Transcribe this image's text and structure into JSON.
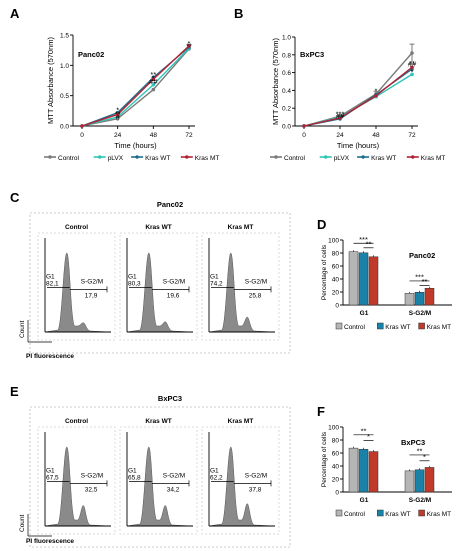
{
  "colors": {
    "control": "#7a7a7a",
    "plvx": "#2ec4b6",
    "kraswt": "#1f6f8b",
    "krasmt": "#b22234",
    "bar_control": "#b5b5b5",
    "bar_wt": "#1a82a8",
    "bar_mt": "#c0392b",
    "hist": "#8a8a8a"
  },
  "icons": [
    "marker-circle-icon",
    "error-bar-icon"
  ],
  "chart_data": [
    {
      "id": "A",
      "panel_label": "A",
      "type": "line",
      "inset_title": "Panc02",
      "xlabel": "Time (hours)",
      "ylabel": "MTT Absorbance (570nm)",
      "x": [
        0,
        24,
        48,
        72
      ],
      "x_ticks": [
        "0",
        "24",
        "48",
        "72"
      ],
      "y_ticks": [
        "0.0",
        "0.5",
        "1.0",
        "1.5"
      ],
      "ylim": [
        0,
        1.5
      ],
      "series": [
        {
          "name": "Control",
          "color": "#7a7a7a",
          "values": [
            0,
            0.12,
            0.6,
            1.27
          ]
        },
        {
          "name": "pLVX",
          "color": "#2ec4b6",
          "values": [
            0,
            0.15,
            0.68,
            1.28
          ]
        },
        {
          "name": "Kras WT",
          "color": "#1f6f8b",
          "values": [
            0,
            0.22,
            0.8,
            1.3
          ]
        },
        {
          "name": "Kras MT",
          "color": "#b22234",
          "values": [
            0,
            0.19,
            0.77,
            1.32
          ]
        }
      ],
      "annotations": [
        {
          "x": 24,
          "y": 0.27,
          "text": "*"
        },
        {
          "x": 24,
          "y": 0.21,
          "text": "**"
        },
        {
          "x": 24,
          "y": 0.16,
          "text": "#"
        },
        {
          "x": 48,
          "y": 0.86,
          "text": "**"
        },
        {
          "x": 48,
          "y": 0.8,
          "text": "*"
        },
        {
          "x": 48,
          "y": 0.74,
          "text": "##"
        },
        {
          "x": 72,
          "y": 1.37,
          "text": "*"
        },
        {
          "x": 72,
          "y": 1.33,
          "text": "**"
        }
      ]
    },
    {
      "id": "B",
      "panel_label": "B",
      "type": "line",
      "inset_title": "BxPC3",
      "xlabel": "Time (hours)",
      "ylabel": "MTT Absorbance (570nm)",
      "x": [
        0,
        24,
        48,
        72
      ],
      "x_ticks": [
        "0",
        "24",
        "48",
        "72"
      ],
      "y_ticks": [
        "0.0",
        "0.2",
        "0.4",
        "0.6",
        "0.8",
        "1.0"
      ],
      "ylim": [
        0,
        1.0
      ],
      "series": [
        {
          "name": "Control",
          "color": "#7a7a7a",
          "values": [
            0,
            0.11,
            0.36,
            0.82
          ],
          "errors": [
            0,
            0.02,
            0.03,
            0.1
          ]
        },
        {
          "name": "pLVX",
          "color": "#2ec4b6",
          "values": [
            0,
            0.1,
            0.33,
            0.58
          ]
        },
        {
          "name": "Kras WT",
          "color": "#1f6f8b",
          "values": [
            0,
            0.08,
            0.35,
            0.64
          ]
        },
        {
          "name": "Kras MT",
          "color": "#b22234",
          "values": [
            0,
            0.09,
            0.34,
            0.66
          ]
        }
      ],
      "annotations": [
        {
          "x": 24,
          "y": 0.14,
          "text": "***"
        },
        {
          "x": 24,
          "y": 0.12,
          "text": "##"
        },
        {
          "x": 48,
          "y": 0.4,
          "text": "*"
        },
        {
          "x": 72,
          "y": 0.71,
          "text": "**"
        },
        {
          "x": 72,
          "y": 0.7,
          "text": "##"
        },
        {
          "x": 72,
          "y": 0.61,
          "text": "*"
        }
      ]
    },
    {
      "id": "C",
      "panel_label": "C",
      "type": "histogram",
      "title": "Panc02",
      "xlabel": "PI fluorescence",
      "ylabel": "Count",
      "subpanels": [
        {
          "name": "Control",
          "g1_label": "G1",
          "g1": "82,1",
          "sg2m_label": "S-G2/M",
          "sg2m": "17,9",
          "g1_height": 0.85,
          "g2_height": 0.1
        },
        {
          "name": "Kras WT",
          "g1_label": "G1",
          "g1": "80,3",
          "sg2m_label": "S-G2/M",
          "sg2m": "19,6",
          "g1_height": 0.85,
          "g2_height": 0.11
        },
        {
          "name": "Kras MT",
          "g1_label": "G1",
          "g1": "74,2",
          "sg2m_label": "S-G2/M",
          "sg2m": "25,8",
          "g1_height": 0.85,
          "g2_height": 0.16
        }
      ]
    },
    {
      "id": "D",
      "panel_label": "D",
      "type": "bar",
      "inset_title": "Panc02",
      "ylabel": "Percentage of cells",
      "ylim": [
        0,
        100
      ],
      "y_ticks": [
        "0",
        "20",
        "40",
        "60",
        "80",
        "100"
      ],
      "categories": [
        "G1",
        "S-G2/M"
      ],
      "series": [
        {
          "name": "Control",
          "color": "#b5b5b5",
          "values": [
            82.1,
            17.9
          ]
        },
        {
          "name": "Kras WT",
          "color": "#1a82a8",
          "values": [
            80.3,
            19.6
          ]
        },
        {
          "name": "Kras MT",
          "color": "#c0392b",
          "values": [
            74.2,
            25.8
          ]
        }
      ],
      "significance": [
        {
          "category": "G1",
          "from": 0,
          "to": 2,
          "text": "***",
          "y": 95
        },
        {
          "category": "G1",
          "from": 1,
          "to": 2,
          "text": "**",
          "y": 88
        },
        {
          "category": "S-G2/M",
          "from": 0,
          "to": 2,
          "text": "***",
          "y": 37
        },
        {
          "category": "S-G2/M",
          "from": 1,
          "to": 2,
          "text": "**",
          "y": 30
        }
      ]
    },
    {
      "id": "E",
      "panel_label": "E",
      "type": "histogram",
      "title": "BxPC3",
      "xlabel": "PI fluorescence",
      "ylabel": "Count",
      "subpanels": [
        {
          "name": "Control",
          "g1_label": "G1",
          "g1": "67,5",
          "sg2m_label": "S-G2/M",
          "sg2m": "32,5",
          "g1_height": 0.85,
          "g2_height": 0.22
        },
        {
          "name": "Kras WT",
          "g1_label": "G1",
          "g1": "65,8",
          "sg2m_label": "S-G2/M",
          "sg2m": "34,2",
          "g1_height": 0.85,
          "g2_height": 0.22
        },
        {
          "name": "Kras MT",
          "g1_label": "G1",
          "g1": "62,2",
          "sg2m_label": "S-G2/M",
          "sg2m": "37,8",
          "g1_height": 0.85,
          "g2_height": 0.24
        }
      ]
    },
    {
      "id": "F",
      "panel_label": "F",
      "type": "bar",
      "inset_title": "BxPC3",
      "ylabel": "Percentage of cells",
      "ylim": [
        0,
        100
      ],
      "y_ticks": [
        "0",
        "20",
        "40",
        "60",
        "80",
        "100"
      ],
      "categories": [
        "G1",
        "S-G2/M"
      ],
      "series": [
        {
          "name": "Control",
          "color": "#b5b5b5",
          "values": [
            67.5,
            32.5
          ]
        },
        {
          "name": "Kras WT",
          "color": "#1a82a8",
          "values": [
            65.8,
            34.2
          ]
        },
        {
          "name": "Kras MT",
          "color": "#c0392b",
          "values": [
            62.2,
            37.8
          ]
        }
      ],
      "significance": [
        {
          "category": "G1",
          "from": 0,
          "to": 2,
          "text": "**",
          "y": 88
        },
        {
          "category": "G1",
          "from": 1,
          "to": 2,
          "text": "*",
          "y": 79
        },
        {
          "category": "S-G2/M",
          "from": 0,
          "to": 2,
          "text": "**",
          "y": 57
        },
        {
          "category": "S-G2/M",
          "from": 1,
          "to": 2,
          "text": "*",
          "y": 48
        }
      ]
    }
  ]
}
